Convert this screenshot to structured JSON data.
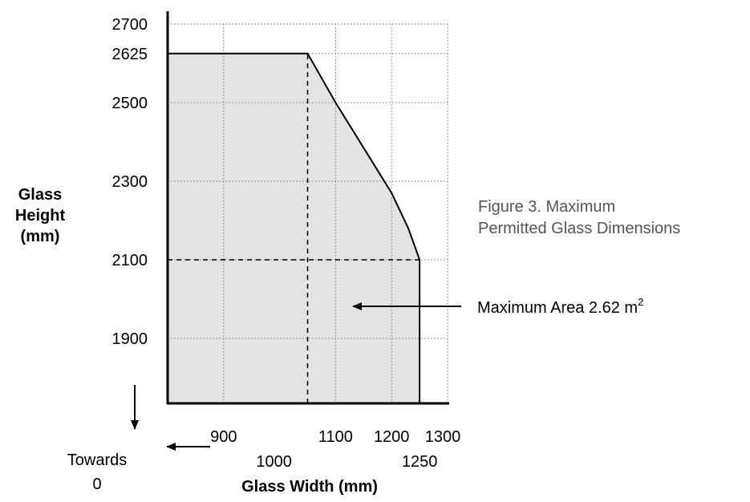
{
  "chart_data": {
    "type": "area",
    "title": "",
    "xlabel": "Glass Width (mm)",
    "ylabel": [
      "Glass",
      "Height",
      "(mm)"
    ],
    "x_ticks_top": [
      "900",
      "1100",
      "1200",
      "1300"
    ],
    "x_ticks_bottom": [
      "1000",
      "1250"
    ],
    "y_ticks": [
      "2700",
      "2625",
      "2500",
      "2300",
      "2100",
      "1900"
    ],
    "xlim": [
      800,
      1300
    ],
    "ylim": [
      1730,
      2700
    ],
    "grid": true,
    "series": [
      {
        "x": [
          1050,
          1100,
          1150,
          1200,
          1230,
          1250
        ],
        "y": [
          2625,
          2500,
          2385,
          2270,
          2180,
          2100
        ]
      }
    ],
    "area_boundary": [
      [
        800,
        2625
      ],
      [
        1050,
        2625
      ],
      [
        1100,
        2500
      ],
      [
        1150,
        2385
      ],
      [
        1200,
        2270
      ],
      [
        1230,
        2180
      ],
      [
        1250,
        2100
      ],
      [
        1250,
        1730
      ]
    ],
    "reference_lines": [
      {
        "orientation": "vertical",
        "x": 1050,
        "y_from": 1730,
        "y_to": 2625
      },
      {
        "orientation": "horizontal",
        "y": 2100,
        "x_from": 800,
        "x_to": 1250
      }
    ],
    "annotations": {
      "max_area_label": "Maximum Area 2.62 m",
      "max_area_sup": "2",
      "towards_label": [
        "Towards",
        "0"
      ],
      "figure_caption": [
        "Figure 3. Maximum",
        "Permitted Glass Dimensions"
      ]
    }
  },
  "colors": {
    "fill": "#e3e3e3",
    "grid": "#777777",
    "caption": "#555555"
  }
}
